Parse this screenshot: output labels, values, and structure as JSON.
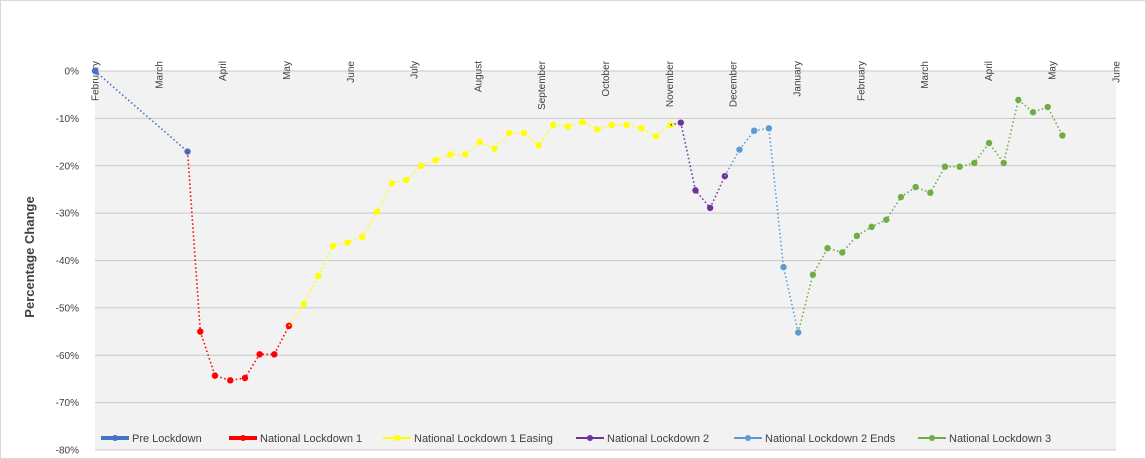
{
  "chart_data": {
    "type": "line",
    "title": "",
    "ylabel": "Percentage Change",
    "ylim": [
      -80,
      0
    ],
    "y_ticks": [
      "0%",
      "-10%",
      "-20%",
      "-30%",
      "-40%",
      "-50%",
      "-60%",
      "-70%",
      "-80%"
    ],
    "x_ticks": [
      "February",
      "March",
      "April",
      "May",
      "June",
      "July",
      "August",
      "September",
      "October",
      "November",
      "December",
      "January",
      "February",
      "March",
      "April",
      "May",
      "June"
    ],
    "grid": true,
    "legend_position": "bottom-left",
    "series": [
      {
        "name": "Pre Lockdown",
        "color": "#4472c4",
        "points": [
          [
            0,
            0
          ],
          [
            1.45,
            -17
          ]
        ]
      },
      {
        "name": "National Lockdown 1",
        "color": "#ff0000",
        "points": [
          [
            1.65,
            -55
          ],
          [
            1.88,
            -64.3
          ],
          [
            2.12,
            -65.3
          ],
          [
            2.35,
            -64.8
          ],
          [
            2.58,
            -59.8
          ],
          [
            2.81,
            -59.8
          ],
          [
            3.04,
            -53.8
          ]
        ]
      },
      {
        "name": "National Lockdown 1 Easing",
        "color": "#ffff00",
        "points": [
          [
            3.27,
            -49.2
          ],
          [
            3.5,
            -43.2
          ],
          [
            3.73,
            -36.9
          ],
          [
            3.96,
            -36.2
          ],
          [
            4.19,
            -35.0
          ],
          [
            4.42,
            -29.7
          ],
          [
            4.65,
            -23.7
          ],
          [
            4.88,
            -23.0
          ],
          [
            5.11,
            -20.0
          ],
          [
            5.34,
            -18.8
          ],
          [
            5.57,
            -17.6
          ],
          [
            5.8,
            -17.6
          ],
          [
            6.03,
            -15.0
          ],
          [
            6.26,
            -16.4
          ],
          [
            6.49,
            -13.1
          ],
          [
            6.72,
            -13.1
          ],
          [
            6.95,
            -15.7
          ],
          [
            7.18,
            -11.4
          ],
          [
            7.41,
            -11.7
          ],
          [
            7.64,
            -10.8
          ],
          [
            7.87,
            -12.3
          ],
          [
            8.1,
            -11.4
          ],
          [
            8.33,
            -11.4
          ],
          [
            8.56,
            -12.1
          ],
          [
            8.79,
            -13.8
          ],
          [
            9.02,
            -11.4
          ]
        ]
      },
      {
        "name": "National Lockdown 2",
        "color": "#7030a0",
        "points": [
          [
            9.18,
            -10.9
          ],
          [
            9.41,
            -25.2
          ],
          [
            9.64,
            -28.9
          ],
          [
            9.87,
            -22.2
          ]
        ]
      },
      {
        "name": "National Lockdown 2 Ends",
        "color": "#5b9bd5",
        "points": [
          [
            10.1,
            -16.6
          ],
          [
            10.33,
            -12.6
          ],
          [
            10.56,
            -12.1
          ],
          [
            10.79,
            -41.4
          ],
          [
            11.02,
            -55.2
          ]
        ]
      },
      {
        "name": "National Lockdown 3",
        "color": "#70ad47",
        "points": [
          [
            11.25,
            -43.0
          ],
          [
            11.48,
            -37.4
          ],
          [
            11.71,
            -38.3
          ],
          [
            11.94,
            -34.8
          ],
          [
            12.17,
            -32.9
          ],
          [
            12.4,
            -31.4
          ],
          [
            12.63,
            -26.6
          ],
          [
            12.86,
            -24.5
          ],
          [
            13.09,
            -25.7
          ],
          [
            13.32,
            -20.2
          ],
          [
            13.55,
            -20.2
          ],
          [
            13.78,
            -19.4
          ],
          [
            14.01,
            -15.2
          ],
          [
            14.24,
            -19.4
          ],
          [
            14.47,
            -6.1
          ],
          [
            14.7,
            -8.7
          ],
          [
            14.93,
            -7.6
          ],
          [
            15.16,
            -13.6
          ]
        ]
      }
    ]
  }
}
